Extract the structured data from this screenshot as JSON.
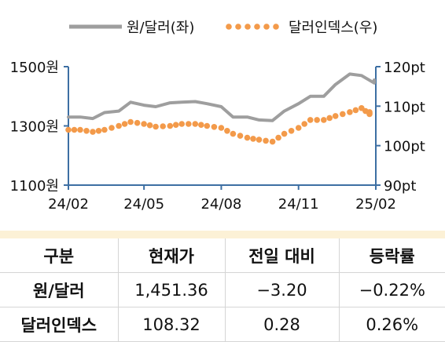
{
  "chart_data": {
    "type": "line",
    "x_ticks": [
      "24/02",
      "24/05",
      "24/08",
      "24/11",
      "25/02"
    ],
    "left_axis": {
      "ticks": [
        "1500원",
        "1300원",
        "1100원"
      ],
      "values": [
        1500,
        1300,
        1100
      ],
      "ylim": [
        1100,
        1500
      ]
    },
    "right_axis": {
      "ticks": [
        "120pt",
        "110pt",
        "100pt",
        "90pt"
      ],
      "values": [
        120,
        110,
        100,
        90
      ],
      "ylim": [
        90,
        120
      ]
    },
    "grid": false,
    "legend_position": "top",
    "series": [
      {
        "name": "원/달러(좌)",
        "axis": "left",
        "style": "solid",
        "color": "#9e9e9e",
        "x": [
          "24/02/01",
          "24/02/15",
          "24/03/01",
          "24/03/15",
          "24/04/01",
          "24/04/15",
          "24/05/01",
          "24/05/15",
          "24/06/01",
          "24/06/15",
          "24/07/01",
          "24/07/15",
          "24/08/01",
          "24/08/15",
          "24/09/01",
          "24/09/15",
          "24/10/01",
          "24/10/15",
          "24/11/01",
          "24/11/15",
          "24/12/01",
          "24/12/15",
          "25/01/01",
          "25/01/15",
          "25/02/01",
          "25/02/10"
        ],
        "values": [
          1330,
          1330,
          1325,
          1345,
          1350,
          1380,
          1370,
          1365,
          1378,
          1380,
          1382,
          1375,
          1365,
          1330,
          1330,
          1320,
          1318,
          1350,
          1375,
          1400,
          1400,
          1440,
          1475,
          1470,
          1445,
          1455
        ]
      },
      {
        "name": "달러인덱스(우)",
        "axis": "right",
        "style": "dotted",
        "color": "#f39a4a",
        "x": [
          "24/02/01",
          "24/02/15",
          "24/03/01",
          "24/03/15",
          "24/04/01",
          "24/04/15",
          "24/05/01",
          "24/05/15",
          "24/06/01",
          "24/06/15",
          "24/07/01",
          "24/07/15",
          "24/08/01",
          "24/08/15",
          "24/09/01",
          "24/09/15",
          "24/10/01",
          "24/10/15",
          "24/11/01",
          "24/11/15",
          "24/12/01",
          "24/12/15",
          "25/01/01",
          "25/01/15",
          "25/02/01",
          "25/02/10"
        ],
        "values": [
          104,
          104,
          103.5,
          104,
          105,
          106,
          105.5,
          104.8,
          105,
          105.5,
          105.5,
          105,
          104.5,
          103,
          102,
          101.5,
          101,
          103,
          104.5,
          106.5,
          106.5,
          107.5,
          108.5,
          109.5,
          108,
          108.5
        ]
      }
    ]
  },
  "table": {
    "headers": [
      "구분",
      "현재가",
      "전일 대비",
      "등락률"
    ],
    "rows": [
      [
        "원/달러",
        "1,451.36",
        "−3.20",
        "−0.22%"
      ],
      [
        "달러인덱스",
        "108.32",
        "0.28",
        "0.26%"
      ]
    ]
  }
}
